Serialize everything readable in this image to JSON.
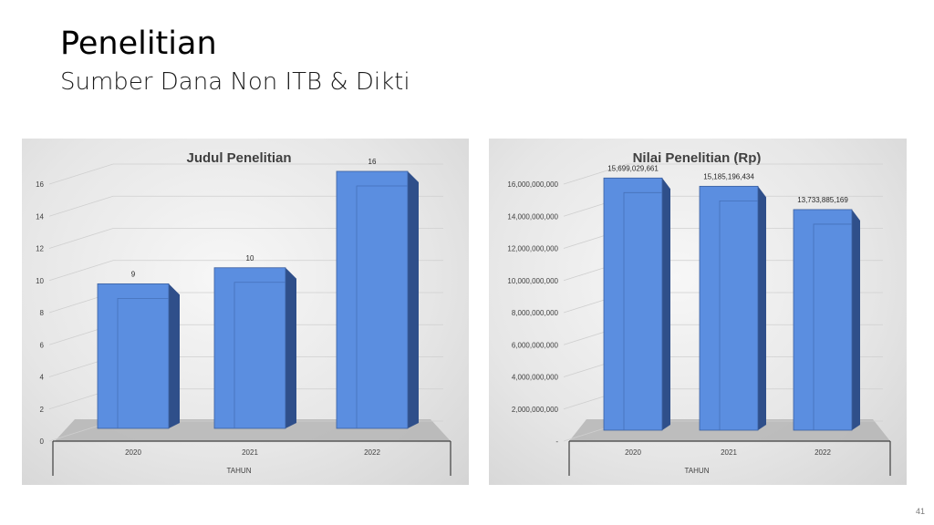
{
  "slide": {
    "title": "Penelitian",
    "subtitle": "Sumber Dana Non ITB & Dikti",
    "page_number": "41"
  },
  "colors": {
    "bar_front": "#5b8ee0",
    "bar_side": "#2f4f8a",
    "bar_top": "#8fb3ef",
    "floor": "#b5b5b5"
  },
  "chart_data": [
    {
      "type": "bar",
      "title": "Judul Penelitian",
      "xlabel": "TAHUN",
      "ylabel": "",
      "categories": [
        "2020",
        "2021",
        "2022"
      ],
      "values": [
        9,
        10,
        16
      ],
      "data_labels": [
        "9",
        "10",
        "16"
      ],
      "ylim": [
        0,
        16
      ],
      "yticks": [
        0,
        2,
        4,
        6,
        8,
        10,
        12,
        14,
        16
      ],
      "ytick_labels": [
        "0",
        "2",
        "4",
        "6",
        "8",
        "10",
        "12",
        "14",
        "16"
      ],
      "grid": true,
      "style": "3d-column"
    },
    {
      "type": "bar",
      "title": "Nilai Penelitian (Rp)",
      "xlabel": "TAHUN",
      "ylabel": "",
      "categories": [
        "2020",
        "2021",
        "2022"
      ],
      "values": [
        15699029661,
        15185196434,
        13733885169
      ],
      "data_labels": [
        "15,699,029,661",
        "15,185,196,434",
        "13,733,885,169"
      ],
      "ylim": [
        0,
        16000000000
      ],
      "yticks": [
        0,
        2000000000,
        4000000000,
        6000000000,
        8000000000,
        10000000000,
        12000000000,
        14000000000,
        16000000000
      ],
      "ytick_labels": [
        "-",
        "2,000,000,000",
        "4,000,000,000",
        "6,000,000,000",
        "8,000,000,000",
        "10,000,000,000",
        "12,000,000,000",
        "14,000,000,000",
        "16,000,000,000"
      ],
      "grid": true,
      "style": "3d-column"
    }
  ]
}
